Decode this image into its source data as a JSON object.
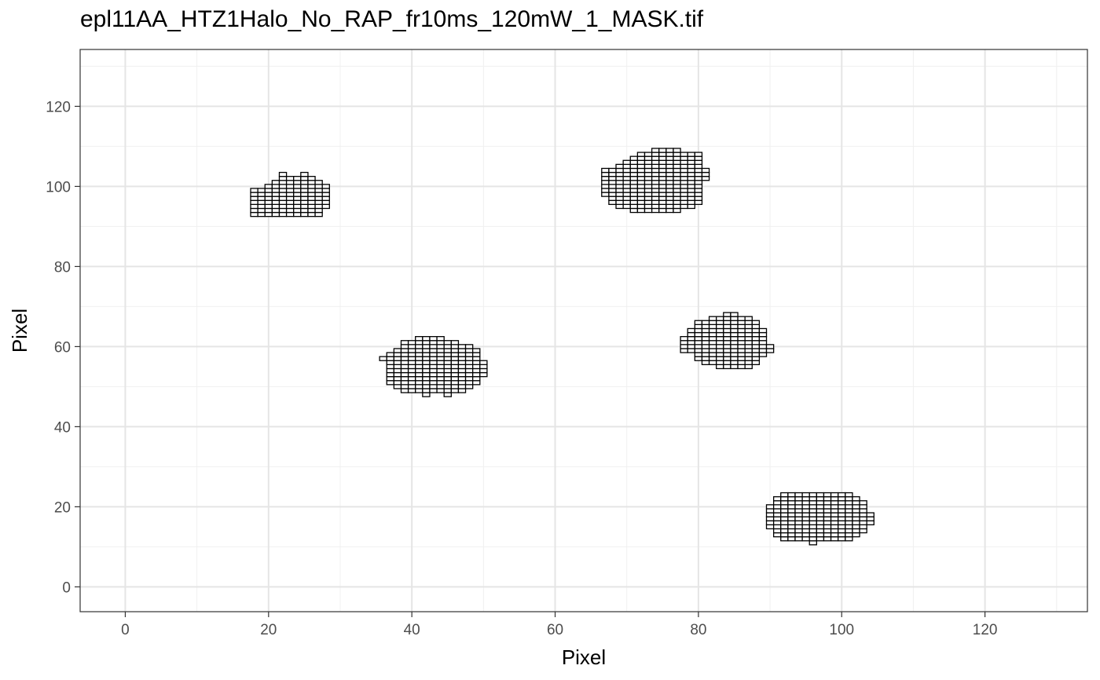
{
  "chart_data": {
    "type": "heatmap",
    "title": "epl11AA_HTZ1Halo_No_RAP_fr10ms_120mW_1_MASK.tif",
    "xlabel": "Pixel",
    "ylabel": "Pixel",
    "xlim": [
      -6.3,
      134.3
    ],
    "ylim": [
      -6.2,
      134.2
    ],
    "xticks": [
      0,
      20,
      40,
      60,
      80,
      100,
      120
    ],
    "yticks": [
      0,
      20,
      40,
      60,
      80,
      100,
      120
    ],
    "grid": true,
    "legend": "none",
    "cell_fill": "#ffffff",
    "cell_outline": "#000000",
    "regions": [
      {
        "rows": [
          {
            "y": 93,
            "x": [
              18,
              19,
              20,
              21,
              22,
              23,
              24,
              25,
              26,
              27
            ]
          },
          {
            "y": 94,
            "x": [
              18,
              19,
              20,
              21,
              22,
              23,
              24,
              25,
              26,
              27
            ]
          },
          {
            "y": 95,
            "x": [
              18,
              19,
              20,
              21,
              22,
              23,
              24,
              25,
              26,
              27,
              28
            ]
          },
          {
            "y": 96,
            "x": [
              18,
              19,
              20,
              21,
              22,
              23,
              24,
              25,
              26,
              27,
              28
            ]
          },
          {
            "y": 97,
            "x": [
              18,
              19,
              20,
              21,
              22,
              23,
              24,
              25,
              26,
              27,
              28
            ]
          },
          {
            "y": 98,
            "x": [
              18,
              19,
              20,
              21,
              22,
              23,
              24,
              25,
              26,
              27,
              28
            ]
          },
          {
            "y": 99,
            "x": [
              18,
              19,
              20,
              21,
              22,
              23,
              24,
              25,
              26,
              27,
              28
            ]
          },
          {
            "y": 100,
            "x": [
              20,
              21,
              22,
              23,
              24,
              25,
              26,
              27,
              28
            ]
          },
          {
            "y": 101,
            "x": [
              21,
              22,
              23,
              24,
              25,
              26,
              27
            ]
          },
          {
            "y": 102,
            "x": [
              22,
              23,
              24,
              25,
              26
            ]
          },
          {
            "y": 103,
            "x": [
              22,
              25
            ]
          }
        ]
      },
      {
        "rows": [
          {
            "y": 94,
            "x": [
              71,
              72,
              73,
              74,
              75,
              76,
              77
            ]
          },
          {
            "y": 95,
            "x": [
              69,
              70,
              71,
              72,
              73,
              74,
              75,
              76,
              77,
              78,
              79
            ]
          },
          {
            "y": 96,
            "x": [
              68,
              69,
              70,
              71,
              72,
              73,
              74,
              75,
              76,
              77,
              78,
              79,
              80
            ]
          },
          {
            "y": 97,
            "x": [
              68,
              69,
              70,
              71,
              72,
              73,
              74,
              75,
              76,
              77,
              78,
              79,
              80
            ]
          },
          {
            "y": 98,
            "x": [
              67,
              68,
              69,
              70,
              71,
              72,
              73,
              74,
              75,
              76,
              77,
              78,
              79,
              80
            ]
          },
          {
            "y": 99,
            "x": [
              67,
              68,
              69,
              70,
              71,
              72,
              73,
              74,
              75,
              76,
              77,
              78,
              79,
              80
            ]
          },
          {
            "y": 100,
            "x": [
              67,
              68,
              69,
              70,
              71,
              72,
              73,
              74,
              75,
              76,
              77,
              78,
              79,
              80
            ]
          },
          {
            "y": 101,
            "x": [
              67,
              68,
              69,
              70,
              71,
              72,
              73,
              74,
              75,
              76,
              77,
              78,
              79,
              80
            ]
          },
          {
            "y": 102,
            "x": [
              67,
              68,
              69,
              70,
              71,
              72,
              73,
              74,
              75,
              76,
              77,
              78,
              79,
              80,
              81
            ]
          },
          {
            "y": 103,
            "x": [
              67,
              68,
              69,
              70,
              71,
              72,
              73,
              74,
              75,
              76,
              77,
              78,
              79,
              80,
              81
            ]
          },
          {
            "y": 104,
            "x": [
              67,
              68,
              69,
              70,
              71,
              72,
              73,
              74,
              75,
              76,
              77,
              78,
              79,
              80,
              81
            ]
          },
          {
            "y": 105,
            "x": [
              69,
              70,
              71,
              72,
              73,
              74,
              75,
              76,
              77,
              78,
              79,
              80
            ]
          },
          {
            "y": 106,
            "x": [
              70,
              71,
              72,
              73,
              74,
              75,
              76,
              77,
              78,
              79,
              80
            ]
          },
          {
            "y": 107,
            "x": [
              71,
              72,
              73,
              74,
              75,
              76,
              77,
              78,
              79,
              80
            ]
          },
          {
            "y": 108,
            "x": [
              72,
              73,
              74,
              75,
              76,
              77,
              78,
              79,
              80
            ]
          },
          {
            "y": 109,
            "x": [
              74,
              75,
              76,
              77
            ]
          }
        ]
      },
      {
        "rows": [
          {
            "y": 48,
            "x": [
              42,
              45
            ]
          },
          {
            "y": 49,
            "x": [
              39,
              40,
              41,
              42,
              43,
              44,
              45,
              46,
              47
            ]
          },
          {
            "y": 50,
            "x": [
              38,
              39,
              40,
              41,
              42,
              43,
              44,
              45,
              46,
              47,
              48
            ]
          },
          {
            "y": 51,
            "x": [
              37,
              38,
              39,
              40,
              41,
              42,
              43,
              44,
              45,
              46,
              47,
              48,
              49
            ]
          },
          {
            "y": 52,
            "x": [
              37,
              38,
              39,
              40,
              41,
              42,
              43,
              44,
              45,
              46,
              47,
              48,
              49
            ]
          },
          {
            "y": 53,
            "x": [
              37,
              38,
              39,
              40,
              41,
              42,
              43,
              44,
              45,
              46,
              47,
              48,
              49,
              50
            ]
          },
          {
            "y": 54,
            "x": [
              37,
              38,
              39,
              40,
              41,
              42,
              43,
              44,
              45,
              46,
              47,
              48,
              49,
              50
            ]
          },
          {
            "y": 55,
            "x": [
              37,
              38,
              39,
              40,
              41,
              42,
              43,
              44,
              45,
              46,
              47,
              48,
              49,
              50
            ]
          },
          {
            "y": 56,
            "x": [
              37,
              38,
              39,
              40,
              41,
              42,
              43,
              44,
              45,
              46,
              47,
              48,
              49,
              50
            ]
          },
          {
            "y": 57,
            "x": [
              36,
              37,
              38,
              39,
              40,
              41,
              42,
              43,
              44,
              45,
              46,
              47,
              48,
              49
            ]
          },
          {
            "y": 58,
            "x": [
              37,
              38,
              39,
              40,
              41,
              42,
              43,
              44,
              45,
              46,
              47,
              48,
              49
            ]
          },
          {
            "y": 59,
            "x": [
              38,
              39,
              40,
              41,
              42,
              43,
              44,
              45,
              46,
              47,
              48,
              49
            ]
          },
          {
            "y": 60,
            "x": [
              39,
              40,
              41,
              42,
              43,
              44,
              45,
              46,
              47,
              48
            ]
          },
          {
            "y": 61,
            "x": [
              39,
              40,
              41,
              42,
              43,
              44,
              45,
              46
            ]
          },
          {
            "y": 62,
            "x": [
              41,
              42,
              43,
              44
            ]
          }
        ]
      },
      {
        "rows": [
          {
            "y": 55,
            "x": [
              83,
              84,
              85,
              86,
              87
            ]
          },
          {
            "y": 56,
            "x": [
              81,
              82,
              83,
              84,
              85,
              86,
              87,
              88
            ]
          },
          {
            "y": 57,
            "x": [
              80,
              81,
              82,
              83,
              84,
              85,
              86,
              87,
              88
            ]
          },
          {
            "y": 58,
            "x": [
              80,
              81,
              82,
              83,
              84,
              85,
              86,
              87,
              88,
              89
            ]
          },
          {
            "y": 59,
            "x": [
              78,
              79,
              80,
              81,
              82,
              83,
              84,
              85,
              86,
              87,
              88,
              89,
              90
            ]
          },
          {
            "y": 60,
            "x": [
              78,
              79,
              80,
              81,
              82,
              83,
              84,
              85,
              86,
              87,
              88,
              89,
              90
            ]
          },
          {
            "y": 61,
            "x": [
              78,
              79,
              80,
              81,
              82,
              83,
              84,
              85,
              86,
              87,
              88,
              89
            ]
          },
          {
            "y": 62,
            "x": [
              78,
              79,
              80,
              81,
              82,
              83,
              84,
              85,
              86,
              87,
              88,
              89
            ]
          },
          {
            "y": 63,
            "x": [
              79,
              80,
              81,
              82,
              83,
              84,
              85,
              86,
              87,
              88,
              89
            ]
          },
          {
            "y": 64,
            "x": [
              79,
              80,
              81,
              82,
              83,
              84,
              85,
              86,
              87,
              88,
              89
            ]
          },
          {
            "y": 65,
            "x": [
              80,
              81,
              82,
              83,
              84,
              85,
              86,
              87,
              88
            ]
          },
          {
            "y": 66,
            "x": [
              80,
              81,
              82,
              83,
              84,
              85,
              86,
              87,
              88
            ]
          },
          {
            "y": 67,
            "x": [
              82,
              83,
              84,
              85,
              86,
              87
            ]
          },
          {
            "y": 68,
            "x": [
              84,
              85
            ]
          }
        ]
      },
      {
        "rows": [
          {
            "y": 11,
            "x": [
              96
            ]
          },
          {
            "y": 12,
            "x": [
              92,
              93,
              94,
              95,
              96,
              97,
              98,
              99,
              100,
              101
            ]
          },
          {
            "y": 13,
            "x": [
              91,
              92,
              93,
              94,
              95,
              96,
              97,
              98,
              99,
              100,
              101,
              102
            ]
          },
          {
            "y": 14,
            "x": [
              91,
              92,
              93,
              94,
              95,
              96,
              97,
              98,
              99,
              100,
              101,
              102,
              103
            ]
          },
          {
            "y": 15,
            "x": [
              90,
              91,
              92,
              93,
              94,
              95,
              96,
              97,
              98,
              99,
              100,
              101,
              102,
              103
            ]
          },
          {
            "y": 16,
            "x": [
              90,
              91,
              92,
              93,
              94,
              95,
              96,
              97,
              98,
              99,
              100,
              101,
              102,
              103,
              104
            ]
          },
          {
            "y": 17,
            "x": [
              90,
              91,
              92,
              93,
              94,
              95,
              96,
              97,
              98,
              99,
              100,
              101,
              102,
              103,
              104
            ]
          },
          {
            "y": 18,
            "x": [
              90,
              91,
              92,
              93,
              94,
              95,
              96,
              97,
              98,
              99,
              100,
              101,
              102,
              103,
              104
            ]
          },
          {
            "y": 19,
            "x": [
              90,
              91,
              92,
              93,
              94,
              95,
              96,
              97,
              98,
              99,
              100,
              101,
              102,
              103
            ]
          },
          {
            "y": 20,
            "x": [
              90,
              91,
              92,
              93,
              94,
              95,
              96,
              97,
              98,
              99,
              100,
              101,
              102,
              103
            ]
          },
          {
            "y": 21,
            "x": [
              91,
              92,
              93,
              94,
              95,
              96,
              97,
              98,
              99,
              100,
              101,
              102,
              103
            ]
          },
          {
            "y": 22,
            "x": [
              91,
              92,
              93,
              94,
              95,
              96,
              97,
              98,
              99,
              100,
              101,
              102
            ]
          },
          {
            "y": 23,
            "x": [
              92,
              93,
              94,
              95,
              96,
              97,
              98,
              99,
              100,
              101
            ]
          }
        ]
      }
    ]
  }
}
